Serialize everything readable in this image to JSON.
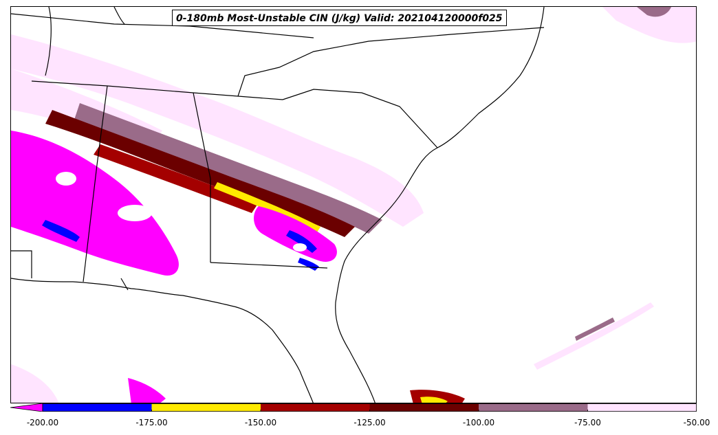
{
  "title": "0-180mb Most-Unstable CIN (J/kg) Valid: 202104120000f025",
  "legend": {
    "units": "J/kg",
    "extend": "min",
    "levels": [
      -200,
      -175,
      -150,
      -125,
      -100,
      -75,
      -50
    ],
    "tick_labels": [
      "-200.00",
      "-175.00",
      "-150.00",
      "-125.00",
      "-100.00",
      "-75.00",
      "-50.00"
    ],
    "under_color": "#ff00ff",
    "colors": [
      "#0000ff",
      "#ffea00",
      "#a40000",
      "#6b0000",
      "#9a6b89",
      "#ffe4ff"
    ]
  },
  "map": {
    "region": "Southeastern United States",
    "coastline_color": "#000000",
    "border_color": "#000000"
  }
}
